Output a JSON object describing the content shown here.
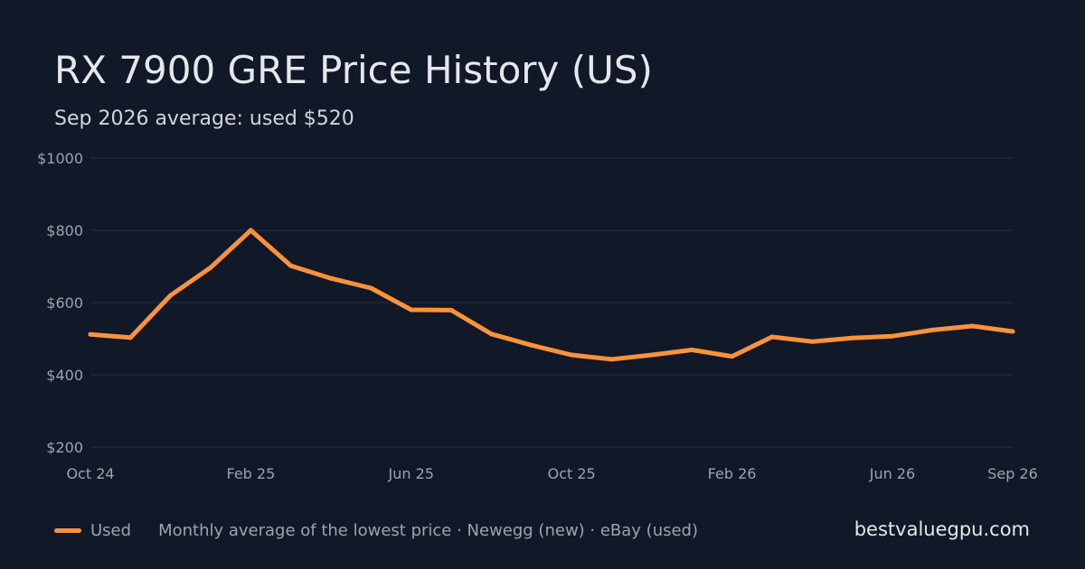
{
  "header": {
    "title": "RX 7900 GRE Price History (US)",
    "subtitle": "Sep 2026 average: used $520"
  },
  "colors": {
    "background": "#111827",
    "grid": "#1f2937",
    "axis_text": "#9ca3af",
    "used": "#fb923c"
  },
  "chart_data": {
    "type": "line",
    "title": "",
    "xlabel": "",
    "ylabel": "",
    "grid": true,
    "ylim": [
      200,
      1000
    ],
    "y_ticks": [
      200,
      400,
      600,
      800,
      1000
    ],
    "y_tick_labels": [
      "$200",
      "$400",
      "$600",
      "$800",
      "$1000"
    ],
    "x": [
      "Oct 24",
      "Nov 24",
      "Dec 24",
      "Jan 25",
      "Feb 25",
      "Mar 25",
      "Apr 25",
      "May 25",
      "Jun 25",
      "Jul 25",
      "Aug 25",
      "Sep 25",
      "Oct 25",
      "Nov 25",
      "Dec 25",
      "Jan 26",
      "Feb 26",
      "Mar 26",
      "Apr 26",
      "May 26",
      "Jun 26",
      "Jul 26",
      "Aug 26",
      "Sep 26"
    ],
    "x_tick_labels": [
      "Oct 24",
      "Feb 25",
      "Jun 25",
      "Oct 25",
      "Feb 26",
      "Jun 26",
      "Sep 26"
    ],
    "series": [
      {
        "name": "Used",
        "values": [
          512,
          503,
          620,
          697,
          800,
          702,
          667,
          640,
          580,
          579,
          513,
          482,
          455,
          443,
          455,
          469,
          451,
          505,
          492,
          502,
          507,
          524,
          535,
          520
        ]
      }
    ]
  },
  "footer": {
    "legend_label": "Used",
    "note": "Monthly average of the lowest price · Newegg (new) · eBay (used)",
    "brand": "bestvaluegpu.com"
  }
}
